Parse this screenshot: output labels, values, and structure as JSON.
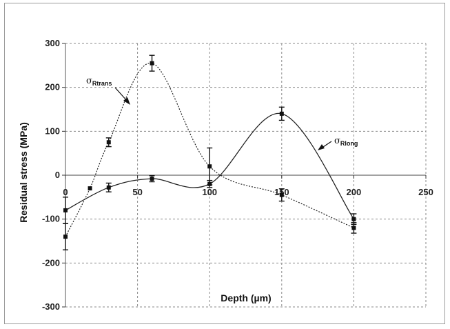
{
  "chart_data": {
    "type": "line",
    "title": "",
    "xlabel": "Depth (µm)",
    "ylabel": "Residual stress (MPa)",
    "xlim": [
      0,
      250
    ],
    "ylim": [
      -300,
      300
    ],
    "x_ticks": [
      "0",
      "50",
      "100",
      "150",
      "200",
      "250"
    ],
    "y_ticks": [
      "300",
      "200",
      "100",
      "0",
      "-100",
      "-200",
      "-300"
    ],
    "grid": true,
    "series": [
      {
        "name": "σRtrans",
        "label_main": "σ",
        "label_sub": "Rtrans",
        "line_style": "dotted",
        "x": [
          0,
          17,
          30,
          60,
          100,
          150,
          200
        ],
        "y": [
          -140,
          -30,
          75,
          255,
          20,
          -45,
          -120
        ],
        "err": [
          30,
          0,
          10,
          18,
          42,
          14,
          12
        ]
      },
      {
        "name": "σRlong",
        "label_main": "σ",
        "label_sub": "Rlong",
        "line_style": "solid",
        "x": [
          0,
          30,
          60,
          100,
          150,
          200
        ],
        "y": [
          -80,
          -28,
          -8,
          -20,
          140,
          -100
        ],
        "err": [
          30,
          10,
          7,
          8,
          15,
          12
        ]
      }
    ]
  }
}
